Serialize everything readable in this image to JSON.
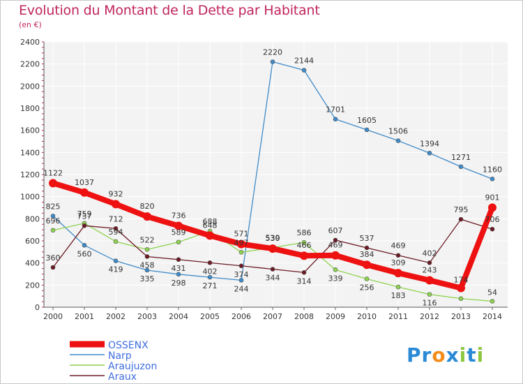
{
  "chart_data": {
    "type": "line",
    "title": "Evolution du Montant de la Dette par Habitant",
    "subtitle": "(en €)",
    "x": [
      "2000",
      "2001",
      "2002",
      "2003",
      "2004",
      "2005",
      "2006",
      "2007",
      "2008",
      "2009",
      "2010",
      "2011",
      "2012",
      "2013",
      "2014"
    ],
    "ylim": [
      0,
      2400
    ],
    "yticks": [
      0,
      200,
      400,
      600,
      800,
      1000,
      1200,
      1400,
      1600,
      1800,
      2000,
      2200,
      2400
    ],
    "grid": true,
    "legend_position": "bottom-left",
    "series": [
      {
        "name": "OSSENX",
        "color": "#ee1111",
        "values": [
          1122,
          1037,
          932,
          820,
          736,
          648,
          571,
          530,
          466,
          469,
          384,
          309,
          243,
          174,
          901
        ],
        "labels": [
          "1122",
          "1037",
          "932",
          "820",
          "736",
          "648",
          "571",
          "530",
          "466",
          "469",
          "384",
          "309",
          "243",
          "174",
          "901"
        ]
      },
      {
        "name": "Narp",
        "color": "#3f8ac8",
        "values": [
          825,
          560,
          419,
          335,
          298,
          271,
          244,
          2220,
          2144,
          1701,
          1605,
          1506,
          1394,
          1271,
          1160
        ],
        "labels": [
          "825",
          "560",
          "419",
          "335",
          "298",
          "271",
          "244",
          "2220",
          "2144",
          "1701",
          "1605",
          "1506",
          "1394",
          "1271",
          "1160"
        ]
      },
      {
        "name": "Araujuzon",
        "color": "#8ed34f",
        "values": [
          696,
          759,
          594,
          522,
          589,
          688,
          497,
          539,
          586,
          339,
          256,
          183,
          116,
          78,
          54
        ],
        "labels": [
          "696",
          "759",
          "594",
          "522",
          "589",
          "688",
          "497",
          "539",
          "586",
          "339",
          "256",
          "183",
          "116",
          "",
          "54"
        ]
      },
      {
        "name": "Araux",
        "color": "#6b1a24",
        "values": [
          360,
          737,
          712,
          458,
          431,
          402,
          374,
          344,
          314,
          607,
          537,
          469,
          402,
          795,
          706
        ],
        "labels": [
          "360",
          "737",
          "712",
          "458",
          "431",
          "402",
          "374",
          "344",
          "314",
          "607",
          "537",
          "469",
          "402",
          "795",
          "706"
        ]
      }
    ]
  },
  "legend": {
    "items": [
      "OSSENX",
      "Narp",
      "Araujuzon",
      "Araux"
    ]
  },
  "logo": {
    "letters": [
      "P",
      "r",
      "o",
      "x",
      "i",
      "t",
      "i"
    ],
    "colors": [
      "#2a8ad6",
      "#2a8ad6",
      "#f28c1a",
      "#2a8ad6",
      "#8cc63f",
      "#2a8ad6",
      "#8cc63f"
    ]
  }
}
